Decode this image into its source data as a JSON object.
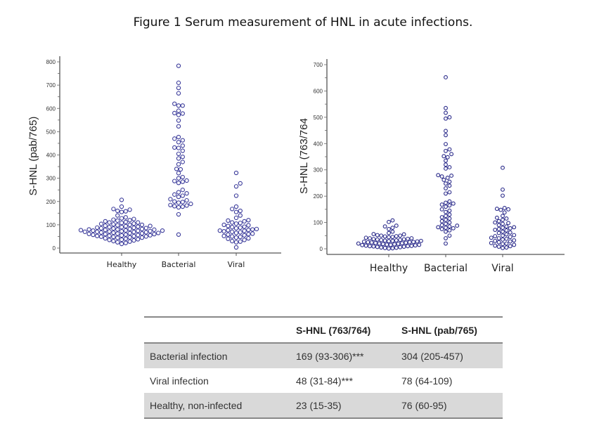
{
  "title": "Figure 1 Serum measurement of HNL in acute infections.",
  "chart_data": [
    {
      "type": "scatter",
      "subtype": "beeswarm",
      "ylabel": "S-HNL (pab/765)",
      "categories": [
        "Healthy",
        "Bacterial",
        "Viral"
      ],
      "ylim": [
        0,
        800
      ],
      "yticks": [
        0,
        100,
        200,
        300,
        400,
        500,
        600,
        700,
        800
      ],
      "marker_color": "#3a3a9a",
      "grid": false,
      "series": [
        {
          "category": "Healthy",
          "values": [
            207,
            178,
            168,
            165,
            160,
            158,
            155,
            140,
            132,
            128,
            125,
            122,
            120,
            118,
            115,
            112,
            110,
            110,
            108,
            105,
            104,
            102,
            100,
            100,
            98,
            96,
            95,
            94,
            92,
            90,
            90,
            88,
            87,
            86,
            85,
            84,
            82,
            82,
            80,
            80,
            79,
            78,
            77,
            76,
            75,
            75,
            74,
            73,
            72,
            71,
            70,
            70,
            69,
            68,
            67,
            66,
            65,
            64,
            63,
            62,
            61,
            60,
            60,
            58,
            57,
            56,
            55,
            54,
            53,
            52,
            51,
            50,
            49,
            48,
            46,
            45,
            44,
            42,
            40,
            38,
            36,
            35,
            33,
            30,
            28,
            25,
            22,
            18
          ]
        },
        {
          "category": "Bacterial",
          "values": [
            783,
            710,
            688,
            665,
            620,
            612,
            612,
            590,
            580,
            578,
            572,
            548,
            523,
            477,
            470,
            463,
            455,
            440,
            432,
            430,
            418,
            405,
            392,
            385,
            370,
            360,
            340,
            338,
            322,
            305,
            300,
            290,
            288,
            285,
            280,
            250,
            240,
            235,
            230,
            225,
            220,
            210,
            205,
            200,
            198,
            195,
            190,
            185,
            183,
            180,
            178,
            175,
            145,
            58
          ]
        },
        {
          "category": "Viral",
          "values": [
            323,
            278,
            265,
            225,
            178,
            168,
            160,
            155,
            140,
            130,
            120,
            118,
            115,
            110,
            108,
            105,
            100,
            98,
            95,
            92,
            90,
            88,
            85,
            82,
            80,
            78,
            77,
            75,
            74,
            72,
            70,
            68,
            65,
            62,
            60,
            58,
            55,
            52,
            50,
            48,
            45,
            42,
            40,
            35,
            30,
            28,
            25,
            3
          ]
        }
      ]
    },
    {
      "type": "scatter",
      "subtype": "beeswarm",
      "ylabel": "S-HNL (763/764",
      "categories": [
        "Healthy",
        "Bacterial",
        "Viral"
      ],
      "ylim": [
        0,
        700
      ],
      "yticks": [
        0,
        100,
        200,
        300,
        400,
        500,
        600,
        700
      ],
      "marker_color": "#2a2a8a",
      "grid": false,
      "series": [
        {
          "category": "Healthy",
          "values": [
            108,
            102,
            88,
            85,
            80,
            75,
            65,
            60,
            56,
            55,
            52,
            50,
            50,
            48,
            47,
            45,
            44,
            42,
            40,
            40,
            38,
            37,
            36,
            35,
            34,
            33,
            32,
            31,
            30,
            30,
            29,
            28,
            27,
            26,
            25,
            25,
            24,
            23,
            22,
            21,
            20,
            20,
            19,
            18,
            17,
            16,
            15,
            15,
            14,
            13,
            12,
            11,
            10,
            10,
            9,
            8,
            7,
            6,
            5,
            4,
            3,
            2,
            1
          ]
        },
        {
          "category": "Bacterial",
          "values": [
            652,
            535,
            517,
            500,
            495,
            448,
            432,
            398,
            378,
            372,
            360,
            352,
            348,
            335,
            320,
            310,
            305,
            280,
            278,
            275,
            270,
            262,
            255,
            248,
            240,
            230,
            215,
            210,
            180,
            175,
            172,
            168,
            165,
            160,
            150,
            145,
            140,
            130,
            125,
            120,
            115,
            110,
            105,
            100,
            95,
            90,
            88,
            85,
            82,
            80,
            78,
            75,
            70,
            65,
            50,
            40,
            20
          ]
        },
        {
          "category": "Viral",
          "values": [
            308,
            225,
            202,
            155,
            152,
            150,
            148,
            138,
            125,
            118,
            115,
            110,
            105,
            100,
            98,
            95,
            90,
            85,
            82,
            80,
            78,
            75,
            72,
            70,
            65,
            62,
            60,
            55,
            52,
            50,
            48,
            45,
            42,
            40,
            38,
            35,
            32,
            30,
            28,
            25,
            22,
            20,
            18,
            15,
            12,
            10,
            8,
            5,
            3
          ]
        }
      ]
    }
  ],
  "table": {
    "headers": [
      "",
      "S-HNL (763/764)",
      "S-HNL (pab/765)"
    ],
    "rows": [
      [
        "Bacterial infection",
        "169 (93-306)***",
        "304 (205-457)"
      ],
      [
        "Viral infection",
        "48 (31-84)***",
        "78 (64-109)"
      ],
      [
        "Healthy, non-infected",
        "23 (15-35)",
        "76 (60-95)"
      ]
    ]
  }
}
